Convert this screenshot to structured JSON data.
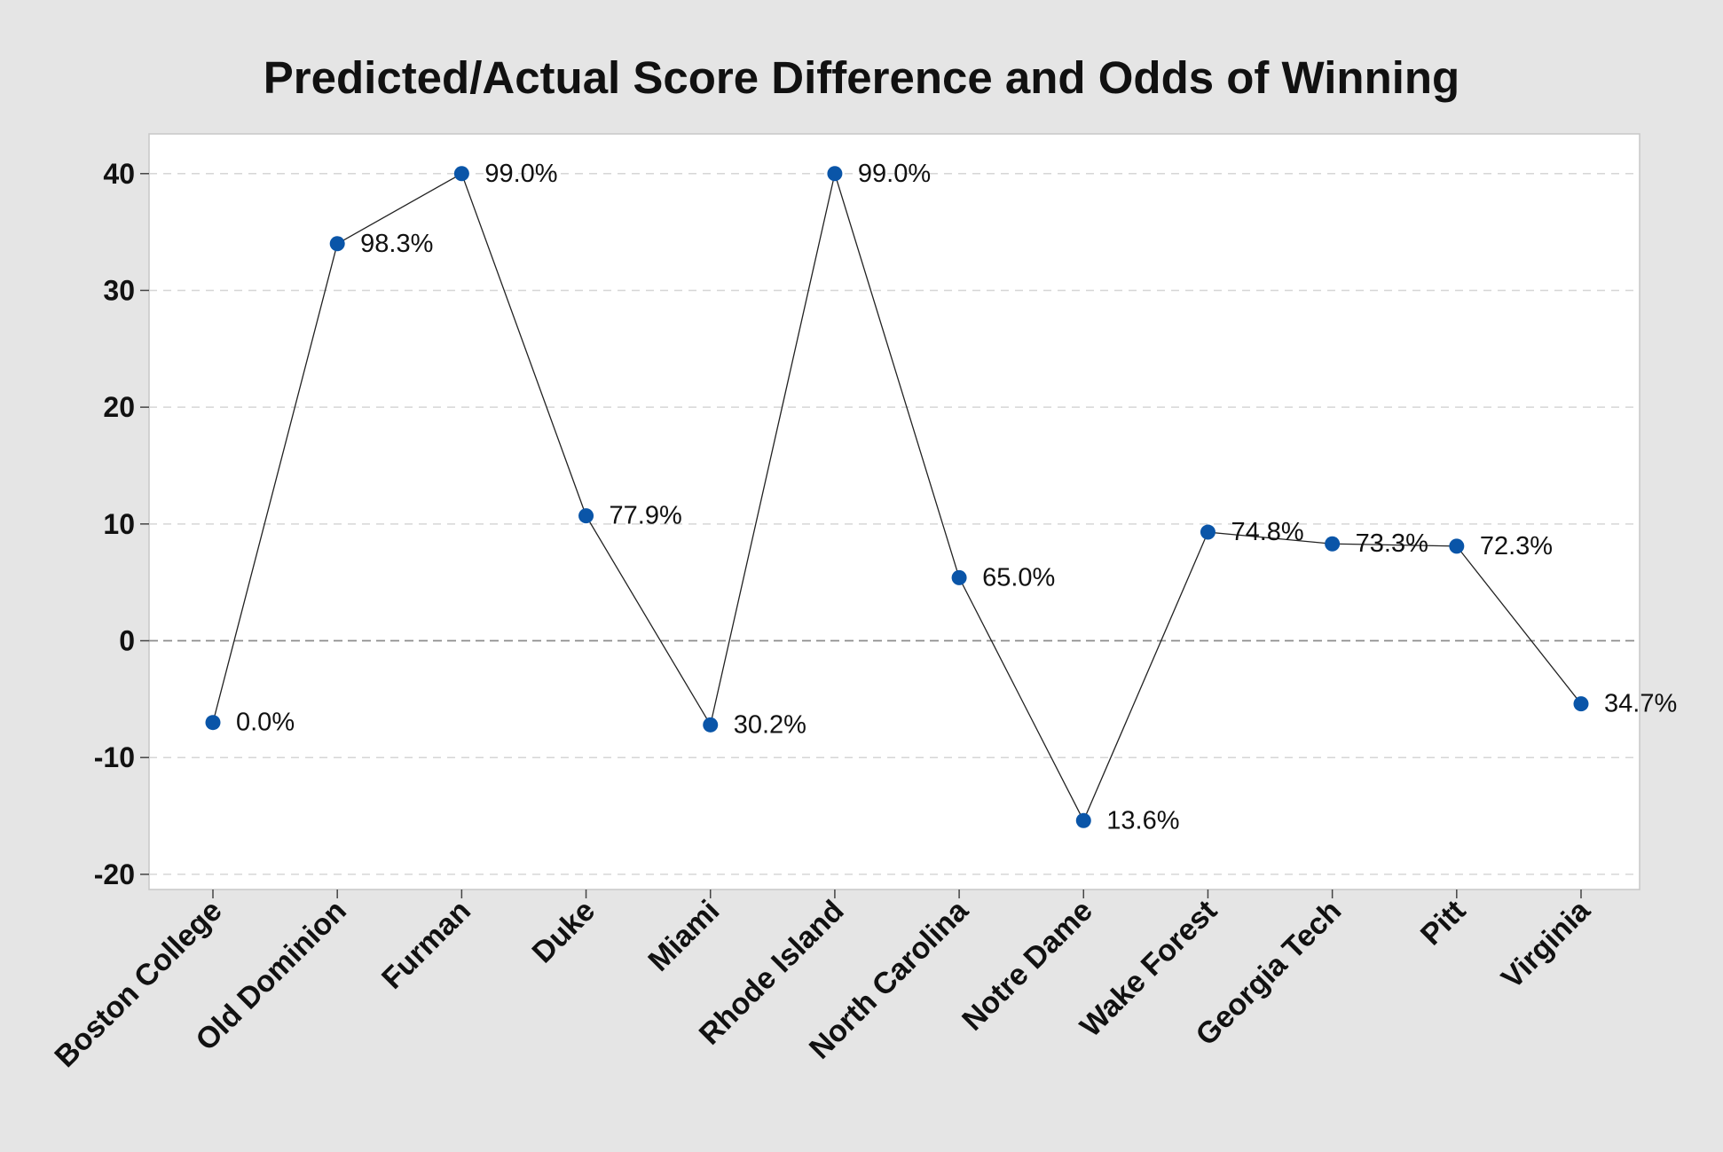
{
  "chart_data": {
    "type": "line",
    "title": "Predicted/Actual Score Difference and Odds of Winning",
    "xlabel": "",
    "ylabel": "",
    "categories": [
      "Boston College",
      "Old Dominion",
      "Furman",
      "Duke",
      "Miami",
      "Rhode Island",
      "North Carolina",
      "Notre Dame",
      "Wake Forest",
      "Georgia Tech",
      "Pitt",
      "Virginia"
    ],
    "values": [
      -7,
      34,
      40,
      10.7,
      -7.2,
      40,
      5.4,
      -15.4,
      9.3,
      8.3,
      8.1,
      -5.4
    ],
    "data_labels": [
      "0.0%",
      "98.3%",
      "99.0%",
      "77.9%",
      "30.2%",
      "99.0%",
      "65.0%",
      "13.6%",
      "74.8%",
      "73.3%",
      "72.3%",
      "34.7%"
    ],
    "yticks": [
      -20,
      -10,
      0,
      10,
      20,
      30,
      40
    ],
    "ytick_labels": [
      "-20",
      "-10",
      "0",
      "10",
      "20",
      "30",
      "40"
    ],
    "ylim": [
      -21.3,
      43.4
    ],
    "grid": "horizontal dashed",
    "reference_line": 0,
    "legend": "none",
    "colors": {
      "background": "#e5e5e5",
      "plot_area": "#ffffff",
      "marker": "#0a55a8",
      "line": "#222222",
      "grid": "#d6d6d6",
      "reference": "#8c8c8c"
    }
  }
}
